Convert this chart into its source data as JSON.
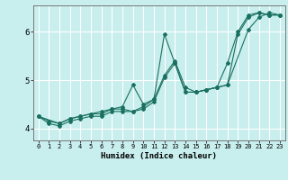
{
  "title": "",
  "xlabel": "Humidex (Indice chaleur)",
  "ylabel": "",
  "background_color": "#c8eeee",
  "grid_color": "#ffffff",
  "line_color": "#1a7060",
  "xlim": [
    -0.5,
    23.5
  ],
  "ylim": [
    3.75,
    6.55
  ],
  "yticks": [
    4,
    5,
    6
  ],
  "xticks": [
    0,
    1,
    2,
    3,
    4,
    5,
    6,
    7,
    8,
    9,
    10,
    11,
    12,
    13,
    14,
    15,
    16,
    17,
    18,
    19,
    20,
    21,
    22,
    23
  ],
  "series": [
    {
      "x": [
        0,
        1,
        2,
        3,
        4,
        5,
        6,
        7,
        8,
        9,
        10,
        11,
        12,
        13,
        14,
        15,
        16,
        17,
        18,
        19,
        20,
        21,
        22,
        23
      ],
      "y": [
        4.25,
        4.15,
        4.1,
        4.2,
        4.25,
        4.3,
        4.35,
        4.4,
        4.45,
        4.9,
        4.5,
        4.6,
        5.95,
        5.35,
        4.75,
        4.75,
        4.8,
        4.85,
        5.35,
        6.0,
        6.35,
        6.4,
        6.35,
        6.35
      ]
    },
    {
      "x": [
        0,
        1,
        2,
        3,
        4,
        5,
        6,
        7,
        8,
        9,
        10,
        11,
        12,
        13,
        14,
        15,
        16,
        17,
        18,
        19,
        20,
        21,
        22,
        23
      ],
      "y": [
        4.25,
        4.1,
        4.05,
        4.15,
        4.2,
        4.25,
        4.25,
        4.35,
        4.35,
        4.35,
        4.4,
        4.55,
        5.05,
        5.35,
        4.75,
        4.75,
        4.8,
        4.85,
        4.9,
        5.95,
        6.3,
        6.4,
        6.35,
        6.35
      ]
    },
    {
      "x": [
        0,
        2,
        3,
        4,
        5,
        6,
        7,
        8,
        9,
        10,
        11,
        12,
        13,
        14,
        15,
        16,
        17,
        18,
        20,
        21,
        22,
        23
      ],
      "y": [
        4.25,
        4.1,
        4.2,
        4.25,
        4.3,
        4.3,
        4.4,
        4.4,
        4.35,
        4.45,
        4.6,
        5.1,
        5.4,
        4.85,
        4.75,
        4.8,
        4.85,
        4.9,
        6.05,
        6.3,
        6.4,
        6.35
      ]
    }
  ]
}
